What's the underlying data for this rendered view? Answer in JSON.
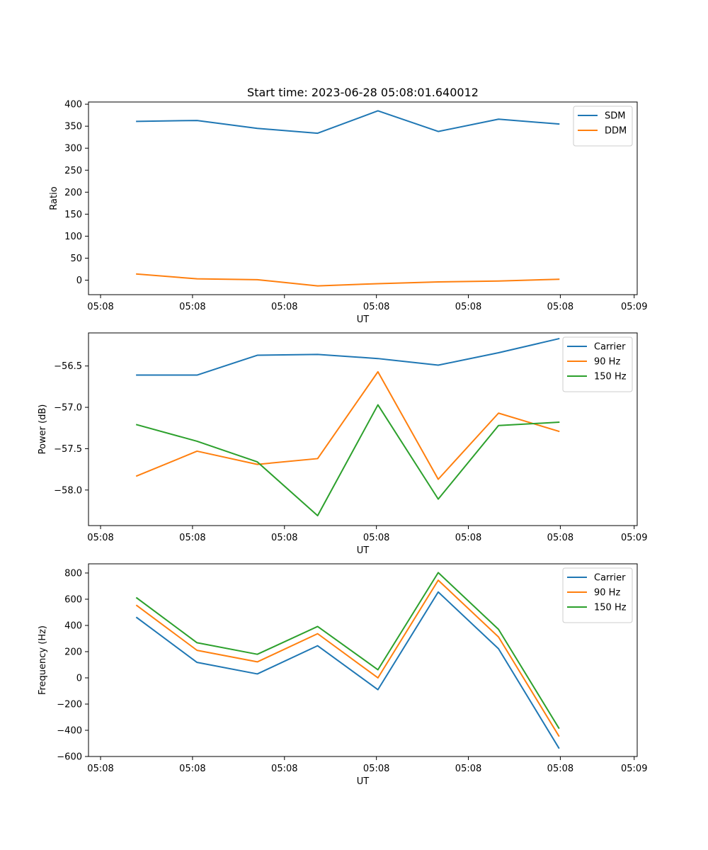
{
  "figure_title": "Start time: 2023-06-28 05:08:01.640012",
  "chart_data": [
    {
      "type": "line",
      "title": "Start time: 2023-06-28 05:08:01.640012",
      "xlabel": "UT",
      "ylabel": "Ratio",
      "x": [
        1,
        2,
        3,
        4,
        5,
        6,
        7,
        8
      ],
      "xlim": [
        0.2,
        9.3
      ],
      "x_ticks": [
        0.4,
        1.925,
        3.45,
        4.975,
        6.5,
        8.025,
        9.25
      ],
      "x_tick_labels": [
        "05:08",
        "05:08",
        "05:08",
        "05:08",
        "05:08",
        "05:08",
        "05:09"
      ],
      "ylim": [
        -33,
        405
      ],
      "y_ticks": [
        0,
        50,
        100,
        150,
        200,
        250,
        300,
        350,
        400
      ],
      "y_tick_labels": [
        "0",
        "50",
        "100",
        "150",
        "200",
        "250",
        "300",
        "350",
        "400"
      ],
      "legend_position": "top-right",
      "grid": false,
      "series": [
        {
          "name": "SDM",
          "color": "#1f77b4",
          "values": [
            361,
            363,
            345,
            334,
            385,
            338,
            366,
            355
          ]
        },
        {
          "name": "DDM",
          "color": "#ff7f0e",
          "values": [
            14,
            3,
            1,
            -13,
            -8,
            -4,
            -2,
            2
          ]
        }
      ]
    },
    {
      "type": "line",
      "xlabel": "UT",
      "ylabel": "Power (dB)",
      "x": [
        1,
        2,
        3,
        4,
        5,
        6,
        7,
        8
      ],
      "xlim": [
        0.2,
        9.3
      ],
      "x_ticks": [
        0.4,
        1.925,
        3.45,
        4.975,
        6.5,
        8.025,
        9.25
      ],
      "x_tick_labels": [
        "05:08",
        "05:08",
        "05:08",
        "05:08",
        "05:08",
        "05:08",
        "05:09"
      ],
      "ylim": [
        -58.43,
        -56.1
      ],
      "y_ticks": [
        -58.0,
        -57.5,
        -57.0,
        -56.5
      ],
      "y_tick_labels": [
        "−58.0",
        "−57.5",
        "−57.0",
        "−56.5"
      ],
      "legend_position": "top-right",
      "grid": false,
      "series": [
        {
          "name": "Carrier",
          "color": "#1f77b4",
          "values": [
            -56.61,
            -56.61,
            -56.37,
            -56.36,
            -56.41,
            -56.49,
            -56.34,
            -56.17
          ]
        },
        {
          "name": "90 Hz",
          "color": "#ff7f0e",
          "values": [
            -57.83,
            -57.53,
            -57.69,
            -57.62,
            -56.57,
            -57.87,
            -57.07,
            -57.29
          ]
        },
        {
          "name": "150 Hz",
          "color": "#2ca02c",
          "values": [
            -57.21,
            -57.41,
            -57.66,
            -58.31,
            -56.97,
            -58.11,
            -57.22,
            -57.18
          ]
        }
      ]
    },
    {
      "type": "line",
      "xlabel": "UT",
      "ylabel": "Frequency (Hz)",
      "x": [
        1,
        2,
        3,
        4,
        5,
        6,
        7,
        8
      ],
      "xlim": [
        0.2,
        9.3
      ],
      "x_ticks": [
        0.4,
        1.925,
        3.45,
        4.975,
        6.5,
        8.025,
        9.25
      ],
      "x_tick_labels": [
        "05:08",
        "05:08",
        "05:08",
        "05:08",
        "05:08",
        "05:08",
        "05:09"
      ],
      "ylim": [
        -600,
        870
      ],
      "y_ticks": [
        -600,
        -400,
        -200,
        0,
        200,
        400,
        600,
        800
      ],
      "y_tick_labels": [
        "−600",
        "−400",
        "−200",
        "0",
        "200",
        "400",
        "600",
        "800"
      ],
      "legend_position": "top-right",
      "grid": false,
      "series": [
        {
          "name": "Carrier",
          "color": "#1f77b4",
          "values": [
            460,
            118,
            30,
            245,
            -90,
            655,
            222,
            -535
          ]
        },
        {
          "name": "90 Hz",
          "color": "#ff7f0e",
          "values": [
            552,
            210,
            122,
            337,
            0,
            745,
            312,
            -443
          ]
        },
        {
          "name": "150 Hz",
          "color": "#2ca02c",
          "values": [
            610,
            268,
            180,
            392,
            62,
            803,
            370,
            -383
          ]
        }
      ]
    }
  ]
}
